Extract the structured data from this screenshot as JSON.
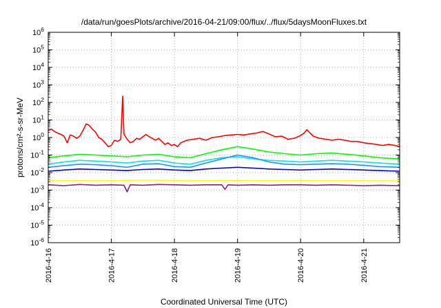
{
  "chart_data": {
    "type": "line",
    "title": "/data/run/goesPlots/archive/2016-04-21/09:00/flux/../flux/5daysMoonFluxes.txt",
    "xlabel": "Coordinated Universal Time (UTC)",
    "ylabel": "protons/cm²-s-sr-MeV",
    "yscale": "log",
    "ylim": [
      1e-06,
      1000000.0
    ],
    "xlim": [
      0,
      5.57
    ],
    "grid": true,
    "legend": "none",
    "x_ticks": [
      {
        "x": 0,
        "label": "2016-4-16"
      },
      {
        "x": 1,
        "label": "2016-4-17"
      },
      {
        "x": 2,
        "label": "2016-4-18"
      },
      {
        "x": 3,
        "label": "2016-4-19"
      },
      {
        "x": 4,
        "label": "2016-4-20"
      },
      {
        "x": 5,
        "label": "2016-4-21"
      }
    ],
    "y_ticks": [
      {
        "exp": -6,
        "label": "10-6"
      },
      {
        "exp": -5,
        "label": "10-5"
      },
      {
        "exp": -4,
        "label": "10-4"
      },
      {
        "exp": -3,
        "label": "10-3"
      },
      {
        "exp": -2,
        "label": "10-2"
      },
      {
        "exp": -1,
        "label": "10-1"
      },
      {
        "exp": 0,
        "label": "100"
      },
      {
        "exp": 1,
        "label": "101"
      },
      {
        "exp": 2,
        "label": "102"
      },
      {
        "exp": 3,
        "label": "103"
      },
      {
        "exp": 4,
        "label": "104"
      },
      {
        "exp": 5,
        "label": "105"
      },
      {
        "exp": 6,
        "label": "106"
      }
    ],
    "series": [
      {
        "color": "#ff0000",
        "x": [
          0,
          0.05,
          0.1,
          0.15,
          0.2,
          0.25,
          0.3,
          0.35,
          0.4,
          0.45,
          0.5,
          0.55,
          0.6,
          0.65,
          0.7,
          0.75,
          0.8,
          0.85,
          0.9,
          0.95,
          1.0,
          1.05,
          1.1,
          1.15,
          1.18,
          1.2,
          1.22,
          1.25,
          1.3,
          1.35,
          1.4,
          1.45,
          1.5,
          1.55,
          1.6,
          1.65,
          1.7,
          1.75,
          1.8,
          1.85,
          1.9,
          1.95,
          2.0,
          2.05,
          2.1,
          2.15,
          2.2,
          2.3,
          2.4,
          2.5,
          2.6,
          2.7,
          2.8,
          2.9,
          3.0,
          3.1,
          3.2,
          3.3,
          3.4,
          3.5,
          3.6,
          3.7,
          3.8,
          3.9,
          4.0,
          4.05,
          4.1,
          4.15,
          4.2,
          4.3,
          4.4,
          4.5,
          4.6,
          4.7,
          4.8,
          4.9,
          5.0,
          5.1,
          5.2,
          5.3,
          5.4,
          5.5,
          5.57
        ],
        "y": [
          2.5,
          3,
          2.2,
          1.8,
          1.5,
          1.2,
          0.5,
          1.4,
          1.2,
          0.9,
          1.2,
          2.5,
          6,
          5,
          3,
          2,
          1,
          0.8,
          0.5,
          0.3,
          0.35,
          0.7,
          0.6,
          0.8,
          230,
          1.5,
          1.2,
          0.8,
          0.5,
          0.6,
          0.9,
          0.8,
          1.1,
          1.5,
          1.1,
          0.9,
          0.7,
          0.9,
          0.6,
          0.4,
          0.5,
          0.35,
          0.4,
          0.3,
          0.5,
          0.6,
          0.7,
          0.8,
          0.9,
          0.7,
          1.0,
          1.1,
          1.3,
          1.4,
          1.5,
          1.4,
          1.6,
          1.8,
          2.2,
          1.6,
          1.1,
          1.2,
          0.8,
          0.9,
          1.3,
          1.7,
          2.8,
          1.8,
          1.2,
          0.9,
          0.8,
          0.7,
          0.8,
          0.7,
          0.6,
          0.6,
          0.5,
          0.45,
          0.4,
          0.35,
          0.4,
          0.35,
          0.3
        ]
      },
      {
        "color": "#00ff00",
        "x": [
          0,
          0.25,
          0.5,
          0.75,
          1.0,
          1.25,
          1.5,
          1.75,
          2.0,
          2.25,
          2.5,
          2.75,
          3.0,
          3.25,
          3.5,
          3.75,
          4.0,
          4.25,
          4.5,
          4.75,
          5.0,
          5.25,
          5.57
        ],
        "y": [
          0.07,
          0.09,
          0.11,
          0.1,
          0.09,
          0.08,
          0.1,
          0.11,
          0.08,
          0.07,
          0.12,
          0.2,
          0.3,
          0.22,
          0.15,
          0.12,
          0.1,
          0.12,
          0.13,
          0.11,
          0.09,
          0.07,
          0.06
        ]
      },
      {
        "color": "#00e5e5",
        "x": [
          0,
          0.25,
          0.5,
          0.75,
          1.0,
          1.25,
          1.5,
          1.75,
          2.0,
          2.25,
          2.5,
          2.75,
          3.0,
          3.25,
          3.5,
          3.75,
          4.0,
          4.25,
          4.5,
          4.75,
          5.0,
          5.25,
          5.57
        ],
        "y": [
          0.03,
          0.04,
          0.05,
          0.045,
          0.04,
          0.035,
          0.045,
          0.05,
          0.035,
          0.03,
          0.05,
          0.07,
          0.08,
          0.06,
          0.05,
          0.045,
          0.04,
          0.045,
          0.05,
          0.045,
          0.04,
          0.035,
          0.03
        ]
      },
      {
        "color": "#1e90ff",
        "x": [
          0,
          0.25,
          0.5,
          0.75,
          1.0,
          1.25,
          1.5,
          1.75,
          2.0,
          2.25,
          2.5,
          2.75,
          3.0,
          3.25,
          3.5,
          3.75,
          4.0,
          4.25,
          4.5,
          4.75,
          5.0,
          5.25,
          5.57
        ],
        "y": [
          0.02,
          0.025,
          0.03,
          0.028,
          0.025,
          0.02,
          0.03,
          0.032,
          0.022,
          0.02,
          0.035,
          0.06,
          0.1,
          0.07,
          0.04,
          0.03,
          0.028,
          0.03,
          0.032,
          0.03,
          0.026,
          0.022,
          0.02
        ]
      },
      {
        "color": "#0000cd",
        "x": [
          0,
          0.25,
          0.5,
          0.75,
          1.0,
          1.25,
          1.5,
          1.75,
          2.0,
          2.25,
          2.5,
          2.75,
          3.0,
          3.25,
          3.5,
          3.75,
          4.0,
          4.25,
          4.5,
          4.75,
          5.0,
          5.25,
          5.57
        ],
        "y": [
          0.012,
          0.014,
          0.016,
          0.015,
          0.014,
          0.013,
          0.015,
          0.016,
          0.014,
          0.013,
          0.016,
          0.018,
          0.02,
          0.018,
          0.016,
          0.015,
          0.014,
          0.015,
          0.016,
          0.015,
          0.014,
          0.013,
          0.012
        ]
      },
      {
        "color": "#ffff00",
        "x": [
          0,
          0.5,
          1.0,
          1.5,
          2.0,
          2.5,
          3.0,
          3.5,
          4.0,
          4.5,
          5.0,
          5.57
        ],
        "y": [
          0.0035,
          0.0036,
          0.0035,
          0.0037,
          0.0036,
          0.0035,
          0.0036,
          0.0035,
          0.0036,
          0.0035,
          0.0034,
          0.0034
        ]
      },
      {
        "color": "#8b1a89",
        "x": [
          0,
          0.25,
          0.5,
          0.75,
          1.0,
          1.2,
          1.25,
          1.3,
          1.5,
          1.75,
          2.0,
          2.25,
          2.5,
          2.75,
          2.8,
          2.85,
          3.0,
          3.25,
          3.5,
          3.75,
          4.0,
          4.25,
          4.5,
          4.75,
          5.0,
          5.25,
          5.57
        ],
        "y": [
          0.002,
          0.0018,
          0.0021,
          0.0019,
          0.002,
          0.0019,
          0.0008,
          0.002,
          0.0019,
          0.0021,
          0.002,
          0.0019,
          0.002,
          0.002,
          0.0011,
          0.002,
          0.0019,
          0.002,
          0.0019,
          0.002,
          0.002,
          0.0019,
          0.002,
          0.0019,
          0.0018,
          0.0019,
          0.0018
        ]
      }
    ]
  }
}
